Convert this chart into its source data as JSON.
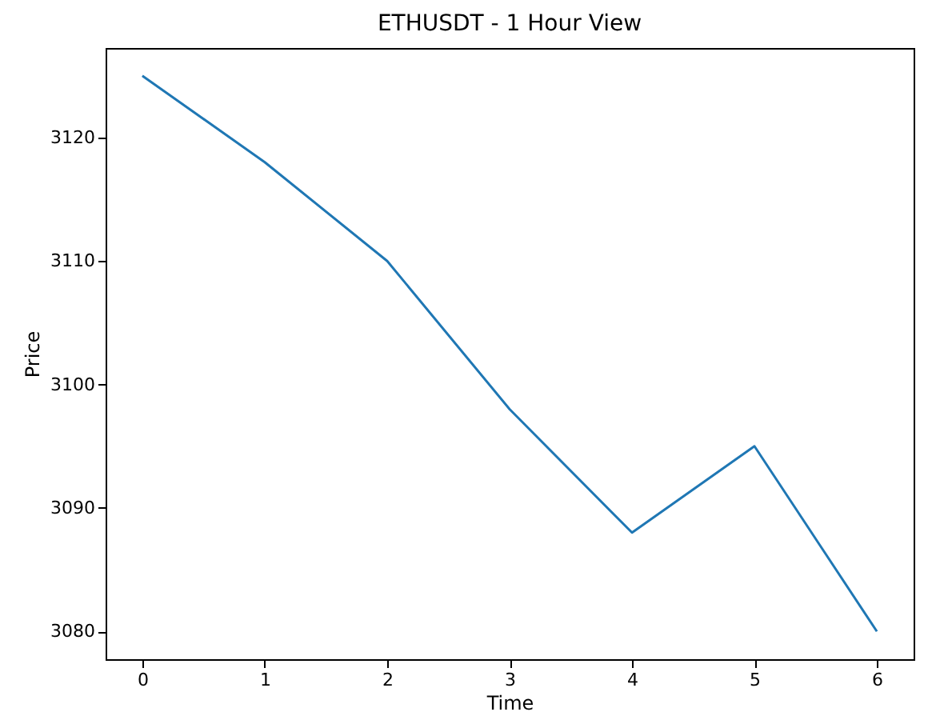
{
  "chart_data": {
    "type": "line",
    "title": "ETHUSDT - 1 Hour View",
    "xlabel": "Time",
    "ylabel": "Price",
    "x": [
      0,
      1,
      2,
      3,
      4,
      5,
      6
    ],
    "series": [
      {
        "color": "#1f77b4",
        "values": [
          3125,
          3118,
          3110,
          3098,
          3088,
          3095,
          3080
        ]
      }
    ],
    "xlim": [
      -0.3,
      6.3
    ],
    "xticks": [
      0,
      1,
      2,
      3,
      4,
      5,
      6
    ],
    "ylim": [
      3077.75,
      3127.25
    ],
    "yticks": [
      3080,
      3090,
      3100,
      3110,
      3120
    ],
    "grid": false,
    "marker": "none",
    "line_style": "solid"
  }
}
